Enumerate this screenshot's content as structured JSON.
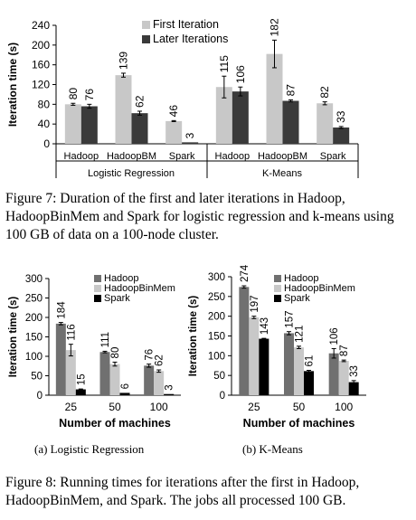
{
  "figure7": {
    "caption": "Figure 7: Duration of the first and later iterations in Hadoop, HadoopBinMem and Spark for logistic regression and k-means using 100 GB of data on a 100-node cluster."
  },
  "figure8": {
    "caption": "Figure 8: Running times for iterations after the first in Hadoop, HadoopBinMem, and Spark. The jobs all processed 100 GB.",
    "subcaption_a": "(a) Logistic Regression",
    "subcaption_b": "(b) K-Means"
  },
  "chart_data": [
    {
      "type": "bar",
      "ylabel": "Iteration time (s)",
      "ylim": [
        0,
        240
      ],
      "yticks": [
        0,
        40,
        80,
        120,
        160,
        200,
        240
      ],
      "groups": [
        "Logistic Regression",
        "K-Means"
      ],
      "categories": [
        "Hadoop",
        "HadoopBM",
        "Spark",
        "Hadoop",
        "HadoopBM",
        "Spark"
      ],
      "series": [
        {
          "name": "First Iteration",
          "color": "#c8c8c8",
          "values": [
            80,
            139,
            46,
            115,
            182,
            82
          ],
          "errors": [
            2,
            4,
            1,
            22,
            28,
            3
          ]
        },
        {
          "name": "Later Iterations",
          "color": "#3a3a3a",
          "values": [
            76,
            62,
            3,
            106,
            87,
            33
          ],
          "errors": [
            4,
            4,
            0,
            9,
            2,
            2
          ]
        }
      ],
      "legend": "top-right",
      "grid": false
    },
    {
      "type": "bar",
      "ylabel": "Iteration time (s)",
      "xlabel": "Number of machines",
      "ylim": [
        0,
        300
      ],
      "yticks": [
        0,
        50,
        100,
        150,
        200,
        250,
        300
      ],
      "categories": [
        "25",
        "50",
        "100"
      ],
      "series": [
        {
          "name": "Hadoop",
          "color": "#707070",
          "values": [
            184,
            111,
            76
          ],
          "errors": [
            3,
            2,
            4
          ]
        },
        {
          "name": "HadoopBinMem",
          "color": "#c8c8c8",
          "values": [
            116,
            80,
            62
          ],
          "errors": [
            15,
            5,
            3
          ]
        },
        {
          "name": "Spark",
          "color": "#000000",
          "values": [
            15,
            6,
            3
          ],
          "errors": [
            1,
            0,
            0
          ]
        }
      ],
      "legend": "top-right",
      "grid": false
    },
    {
      "type": "bar",
      "ylabel": "Iteration time (s)",
      "xlabel": "Number of machines",
      "ylim": [
        0,
        300
      ],
      "yticks": [
        0,
        50,
        100,
        150,
        200,
        250,
        300
      ],
      "categories": [
        "25",
        "50",
        "100"
      ],
      "series": [
        {
          "name": "Hadoop",
          "color": "#707070",
          "values": [
            274,
            157,
            106
          ],
          "errors": [
            3,
            4,
            12
          ]
        },
        {
          "name": "HadoopBinMem",
          "color": "#c8c8c8",
          "values": [
            197,
            121,
            87
          ],
          "errors": [
            3,
            3,
            2
          ]
        },
        {
          "name": "Spark",
          "color": "#000000",
          "values": [
            143,
            61,
            33
          ],
          "errors": [
            1,
            2,
            4
          ]
        }
      ],
      "legend": "top-right",
      "grid": false
    }
  ]
}
